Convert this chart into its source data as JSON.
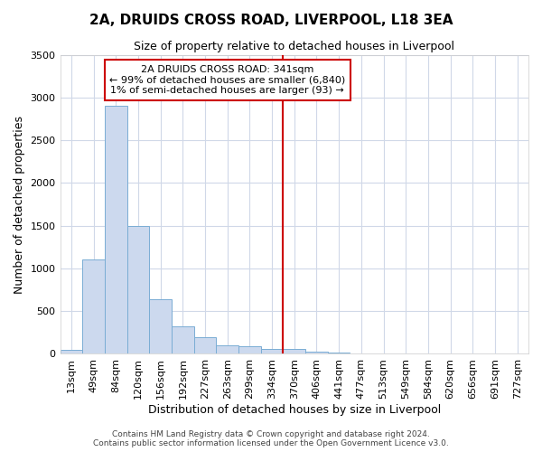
{
  "title": "2A, DRUIDS CROSS ROAD, LIVERPOOL, L18 3EA",
  "subtitle": "Size of property relative to detached houses in Liverpool",
  "xlabel": "Distribution of detached houses by size in Liverpool",
  "ylabel": "Number of detached properties",
  "bar_color": "#ccd9ee",
  "bar_edge_color": "#7aadd4",
  "background_color": "#ffffff",
  "grid_color": "#d0d8e8",
  "bins": [
    "13sqm",
    "49sqm",
    "84sqm",
    "120sqm",
    "156sqm",
    "192sqm",
    "227sqm",
    "263sqm",
    "299sqm",
    "334sqm",
    "370sqm",
    "406sqm",
    "441sqm",
    "477sqm",
    "513sqm",
    "549sqm",
    "584sqm",
    "620sqm",
    "656sqm",
    "691sqm",
    "727sqm"
  ],
  "values": [
    50,
    1100,
    2900,
    1500,
    640,
    320,
    190,
    95,
    90,
    55,
    55,
    25,
    15,
    0,
    0,
    0,
    0,
    0,
    0,
    0,
    0
  ],
  "ylim": [
    0,
    3500
  ],
  "yticks": [
    0,
    500,
    1000,
    1500,
    2000,
    2500,
    3000,
    3500
  ],
  "redline_bin_index": 9.5,
  "annotation_line1": "2A DRUIDS CROSS ROAD: 341sqm",
  "annotation_line2": "← 99% of detached houses are smaller (6,840)",
  "annotation_line3": "1% of semi-detached houses are larger (93) →",
  "vline_color": "#cc0000",
  "annotation_box_color": "#cc0000",
  "footer_line1": "Contains HM Land Registry data © Crown copyright and database right 2024.",
  "footer_line2": "Contains public sector information licensed under the Open Government Licence v3.0.",
  "title_fontsize": 11,
  "subtitle_fontsize": 9,
  "axis_label_fontsize": 9,
  "tick_fontsize": 8,
  "annotation_fontsize": 8,
  "footer_fontsize": 6.5
}
